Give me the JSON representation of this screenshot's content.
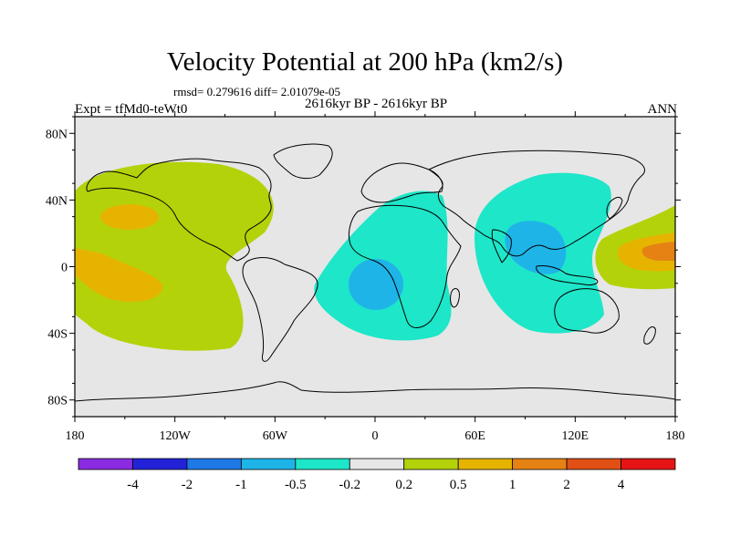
{
  "title": "Velocity Potential at 200 hPa (km2/s)",
  "stats": "rmsd= 0.279616 diff= 2.01079e-05",
  "experiment": "Expt = tfMd0-teWt0",
  "period": "2616kyr BP - 2616kyr BP",
  "season": "ANN",
  "axes": {
    "lat_labels": [
      "80N",
      "40N",
      "0",
      "40S",
      "80S"
    ],
    "lon_labels": [
      "180",
      "120W",
      "60W",
      "0",
      "60E",
      "120E",
      "180"
    ]
  },
  "colorbar": {
    "labels": [
      "-4",
      "-2",
      "-1",
      "-0.5",
      "-0.2",
      "0.2",
      "0.5",
      "1",
      "2",
      "4"
    ],
    "colors": [
      "#8a2be2",
      "#2222d8",
      "#1e78e6",
      "#1eb4e8",
      "#1ee6c8",
      "#e6e6e6",
      "#b4d20a",
      "#e6b400",
      "#e68214",
      "#e05014",
      "#e61414"
    ]
  },
  "colors": {
    "background": "#e6e6e6",
    "pos_weak": "#b4d20a",
    "pos_mid": "#e6b400",
    "pos_strong": "#e68214",
    "neg_weak": "#1ee6c8",
    "neg_mid": "#1eb4e8"
  }
}
